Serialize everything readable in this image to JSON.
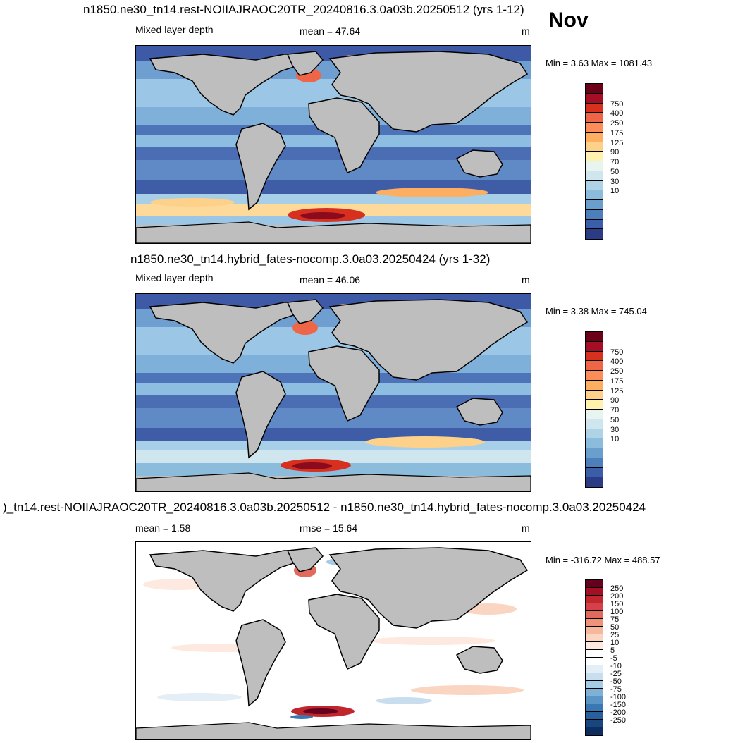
{
  "month_label": "Nov",
  "panels": [
    {
      "title": "n1850.ne30_tn14.rest-NOIIAJRAOC20TR_20240816.3.0a03b.20250512 (yrs 1-12)",
      "left_label": "Mixed layer depth",
      "center_label": "mean =  47.64",
      "units": "m",
      "range_text": "Min =   3.63 Max = 1081.43",
      "colorbar": {
        "colors": [
          "#6b0016",
          "#a50f26",
          "#d7301f",
          "#ef6548",
          "#fc8d59",
          "#fdae61",
          "#fdd18a",
          "#fff2b0",
          "#e8f4f0",
          "#cfe6ef",
          "#afd3e6",
          "#8cbcdb",
          "#6a9fcd",
          "#4d7fbc",
          "#3c5ea8",
          "#2b3c85"
        ],
        "labels": [
          "750",
          "400",
          "250",
          "175",
          "125",
          "90",
          "70",
          "50",
          "30",
          "10"
        ]
      }
    },
    {
      "title": "n1850.ne30_tn14.hybrid_fates-nocomp.3.0a03.20250424 (yrs 1-32)",
      "left_label": "Mixed layer depth",
      "center_label": "mean =  46.06",
      "units": "m",
      "range_text": "Min =   3.38 Max = 745.04",
      "colorbar": {
        "colors": [
          "#6b0016",
          "#a50f26",
          "#d7301f",
          "#ef6548",
          "#fc8d59",
          "#fdae61",
          "#fdd18a",
          "#fff2b0",
          "#e8f4f0",
          "#cfe6ef",
          "#afd3e6",
          "#8cbcdb",
          "#6a9fcd",
          "#4d7fbc",
          "#3c5ea8",
          "#2b3c85"
        ],
        "labels": [
          "750",
          "400",
          "250",
          "175",
          "125",
          "90",
          "70",
          "50",
          "30",
          "10"
        ]
      }
    },
    {
      "title": ")_tn14.rest-NOIIAJRAOC20TR_20240816.3.0a03b.20250512 - n1850.ne30_tn14.hybrid_fates-nocomp.3.0a03.20250424",
      "left_label": "mean =   1.58",
      "center_label": "rmse =  15.64",
      "units": "m",
      "range_text": "Min = -316.72 Max = 488.57",
      "colorbar": {
        "colors": [
          "#67001f",
          "#a50f26",
          "#c0272d",
          "#d6404a",
          "#e26a5c",
          "#ee9377",
          "#f6b89d",
          "#fad5c2",
          "#fde9df",
          "#ffffff",
          "#ffffff",
          "#e4eef6",
          "#c8ddee",
          "#a6cbe3",
          "#7fb1d6",
          "#5a95c6",
          "#3a78b4",
          "#2a5f9e",
          "#1a4680",
          "#0b2d60"
        ],
        "labels": [
          "250",
          "200",
          "150",
          "100",
          "75",
          "50",
          "25",
          "10",
          "5",
          "-5",
          "-10",
          "-25",
          "-50",
          "-75",
          "-100",
          "-150",
          "-200",
          "-250"
        ]
      }
    }
  ]
}
